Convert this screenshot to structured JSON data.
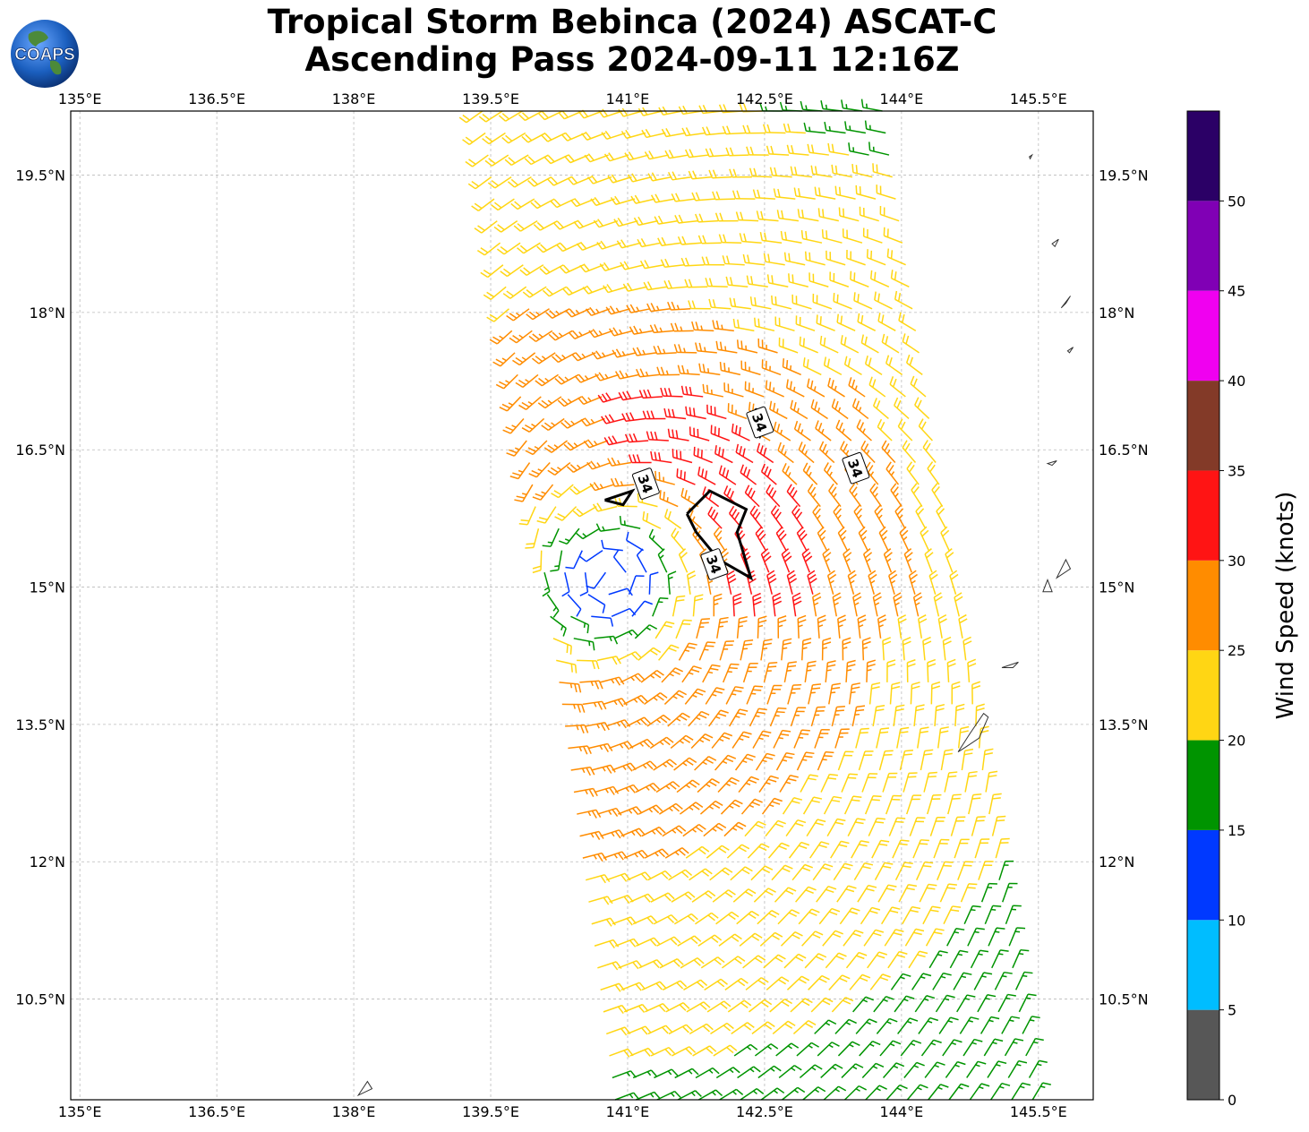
{
  "title": {
    "line1": "Tropical Storm Bebinca (2024) ASCAT-C",
    "line2": "Ascending Pass 2024-09-11 12:16Z"
  },
  "logo": {
    "text": "COAPS"
  },
  "map": {
    "extent": {
      "lon_min": 134.9,
      "lon_max": 146.1,
      "lat_min": 9.4,
      "lat_max": 20.2
    },
    "lon_ticks": [
      {
        "value": 135.0,
        "label": "135°E"
      },
      {
        "value": 136.5,
        "label": "136.5°E"
      },
      {
        "value": 138.0,
        "label": "138°E"
      },
      {
        "value": 139.5,
        "label": "139.5°E"
      },
      {
        "value": 141.0,
        "label": "141°E"
      },
      {
        "value": 142.5,
        "label": "142.5°E"
      },
      {
        "value": 144.0,
        "label": "144°E"
      },
      {
        "value": 145.5,
        "label": "145.5°E"
      }
    ],
    "lat_ticks": [
      {
        "value": 19.5,
        "label": "19.5°N"
      },
      {
        "value": 18.0,
        "label": "18°N"
      },
      {
        "value": 16.5,
        "label": "16.5°N"
      },
      {
        "value": 15.0,
        "label": "15°N"
      },
      {
        "value": 13.5,
        "label": "13.5°N"
      },
      {
        "value": 12.0,
        "label": "12°N"
      },
      {
        "value": 10.5,
        "label": "10.5°N"
      }
    ],
    "gridlines": true,
    "storm_center": {
      "lon": 140.8,
      "lat": 15.1
    },
    "swath": {
      "nw": [
        139.3,
        20.2
      ],
      "ne": [
        143.9,
        20.2
      ],
      "se": [
        145.55,
        9.4
      ],
      "sw": [
        140.75,
        9.4
      ]
    },
    "contour_label": "34",
    "contour_34kt": [
      {
        "label_at": [
          141.2,
          16.13
        ],
        "points": [
          [
            140.75,
            15.95
          ],
          [
            140.9,
            16.0
          ],
          [
            141.05,
            16.05
          ],
          [
            140.95,
            15.9
          ],
          [
            140.75,
            15.95
          ]
        ]
      },
      {
        "label_at": [
          141.95,
          15.25
        ],
        "points": [
          [
            141.65,
            15.8
          ],
          [
            141.9,
            16.05
          ],
          [
            142.3,
            15.85
          ],
          [
            142.2,
            15.6
          ],
          [
            142.35,
            15.1
          ],
          [
            142.0,
            15.3
          ],
          [
            141.75,
            15.6
          ],
          [
            141.65,
            15.8
          ]
        ]
      },
      {
        "label_at": [
          142.45,
          16.8
        ],
        "points": [
          [
            142.35,
            16.85
          ],
          [
            142.45,
            16.65
          ],
          [
            142.5,
            16.75
          ],
          [
            142.4,
            16.95
          ]
        ]
      },
      {
        "label_at": [
          143.5,
          16.3
        ],
        "points": [
          [
            143.45,
            16.25
          ],
          [
            143.5,
            16.35
          ],
          [
            143.55,
            16.2
          ]
        ]
      }
    ],
    "land": [
      {
        "name": "Guam",
        "points": [
          [
            144.62,
            13.2
          ],
          [
            144.75,
            13.4
          ],
          [
            144.9,
            13.62
          ],
          [
            144.95,
            13.58
          ],
          [
            144.85,
            13.35
          ],
          [
            144.7,
            13.25
          ]
        ]
      },
      {
        "name": "Rota",
        "points": [
          [
            145.1,
            14.12
          ],
          [
            145.28,
            14.18
          ],
          [
            145.22,
            14.12
          ]
        ]
      },
      {
        "name": "Tinian",
        "points": [
          [
            145.55,
            14.95
          ],
          [
            145.6,
            15.08
          ],
          [
            145.65,
            14.95
          ]
        ]
      },
      {
        "name": "Saipan",
        "points": [
          [
            145.7,
            15.1
          ],
          [
            145.8,
            15.3
          ],
          [
            145.85,
            15.2
          ]
        ]
      },
      {
        "name": "Anatahan",
        "points": [
          [
            145.6,
            16.35
          ],
          [
            145.7,
            16.38
          ],
          [
            145.65,
            16.33
          ]
        ]
      },
      {
        "name": "Pagan",
        "points": [
          [
            145.75,
            18.05
          ],
          [
            145.85,
            18.18
          ],
          [
            145.8,
            18.1
          ]
        ]
      },
      {
        "name": "Alamagan",
        "points": [
          [
            145.82,
            17.58
          ],
          [
            145.88,
            17.62
          ],
          [
            145.84,
            17.56
          ]
        ]
      },
      {
        "name": "Agrihan",
        "points": [
          [
            145.65,
            18.75
          ],
          [
            145.72,
            18.8
          ],
          [
            145.68,
            18.72
          ]
        ]
      },
      {
        "name": "Asuncion",
        "points": [
          [
            145.4,
            19.7
          ],
          [
            145.43,
            19.72
          ],
          [
            145.41,
            19.68
          ]
        ]
      },
      {
        "name": "Parece Vela area",
        "points": [
          [
            138.05,
            9.45
          ],
          [
            138.15,
            9.6
          ],
          [
            138.2,
            9.52
          ]
        ]
      }
    ]
  },
  "colorbar": {
    "label": "Wind Speed (knots)",
    "bins": [
      {
        "from": 0,
        "to": 5,
        "color": "#575757"
      },
      {
        "from": 5,
        "to": 10,
        "color": "#00bdff"
      },
      {
        "from": 10,
        "to": 15,
        "color": "#0039ff"
      },
      {
        "from": 15,
        "to": 20,
        "color": "#009400"
      },
      {
        "from": 20,
        "to": 25,
        "color": "#ffd614"
      },
      {
        "from": 25,
        "to": 30,
        "color": "#ff8c00"
      },
      {
        "from": 30,
        "to": 35,
        "color": "#ff1414"
      },
      {
        "from": 35,
        "to": 40,
        "color": "#833a28"
      },
      {
        "from": 40,
        "to": 45,
        "color": "#f000f0"
      },
      {
        "from": 45,
        "to": 50,
        "color": "#8000b5"
      },
      {
        "from": 50,
        "to": 55,
        "color": "#2b0066"
      }
    ],
    "ticks": [
      {
        "value": 0,
        "label": "0"
      },
      {
        "value": 5,
        "label": "5"
      },
      {
        "value": 10,
        "label": "10"
      },
      {
        "value": 15,
        "label": "15"
      },
      {
        "value": 20,
        "label": "20"
      },
      {
        "value": 25,
        "label": "25"
      },
      {
        "value": 30,
        "label": "30"
      },
      {
        "value": 35,
        "label": "35"
      },
      {
        "value": 40,
        "label": "40"
      },
      {
        "value": 45,
        "label": "45"
      },
      {
        "value": 50,
        "label": "50"
      }
    ]
  }
}
